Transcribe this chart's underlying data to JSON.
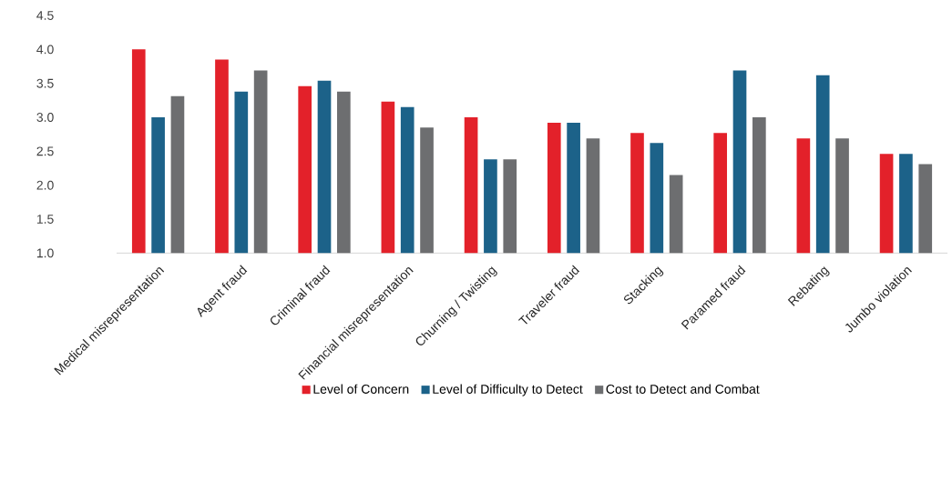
{
  "chart_data": {
    "type": "bar",
    "categories": [
      "Medical misrepresentation",
      "Agent fraud",
      "Criminal fraud",
      "Financial misrepresentation",
      "Churning / Twisting",
      "Traveler fraud",
      "Stacking",
      "Paramed fraud",
      "Rebating",
      "Jumbo violation"
    ],
    "series": [
      {
        "name": "Level of Concern",
        "color": "#e3212a",
        "values": [
          4.0,
          3.85,
          3.46,
          3.23,
          3.0,
          2.92,
          2.77,
          2.77,
          2.69,
          2.46
        ]
      },
      {
        "name": "Level of Difficulty to Detect",
        "color": "#1c6289",
        "values": [
          3.0,
          3.38,
          3.54,
          3.15,
          2.38,
          2.92,
          2.62,
          3.69,
          3.62,
          2.46
        ]
      },
      {
        "name": "Cost to Detect and Combat",
        "color": "#6d6e70",
        "values": [
          3.31,
          3.69,
          3.38,
          2.85,
          2.38,
          2.69,
          2.15,
          3.0,
          2.69,
          2.31
        ]
      }
    ],
    "ylim": [
      1.0,
      4.5
    ],
    "yticks": [
      {
        "value": 1.0,
        "label": "1.0"
      },
      {
        "value": 1.5,
        "label": "1.5"
      },
      {
        "value": 2.0,
        "label": "2.0"
      },
      {
        "value": 2.5,
        "label": "2.5"
      },
      {
        "value": 3.0,
        "label": "3.0"
      },
      {
        "value": 3.5,
        "label": "3.5"
      },
      {
        "value": 4.0,
        "label": "4.0"
      },
      {
        "value": 4.5,
        "label": "4.5"
      }
    ],
    "legend": "bottom"
  }
}
